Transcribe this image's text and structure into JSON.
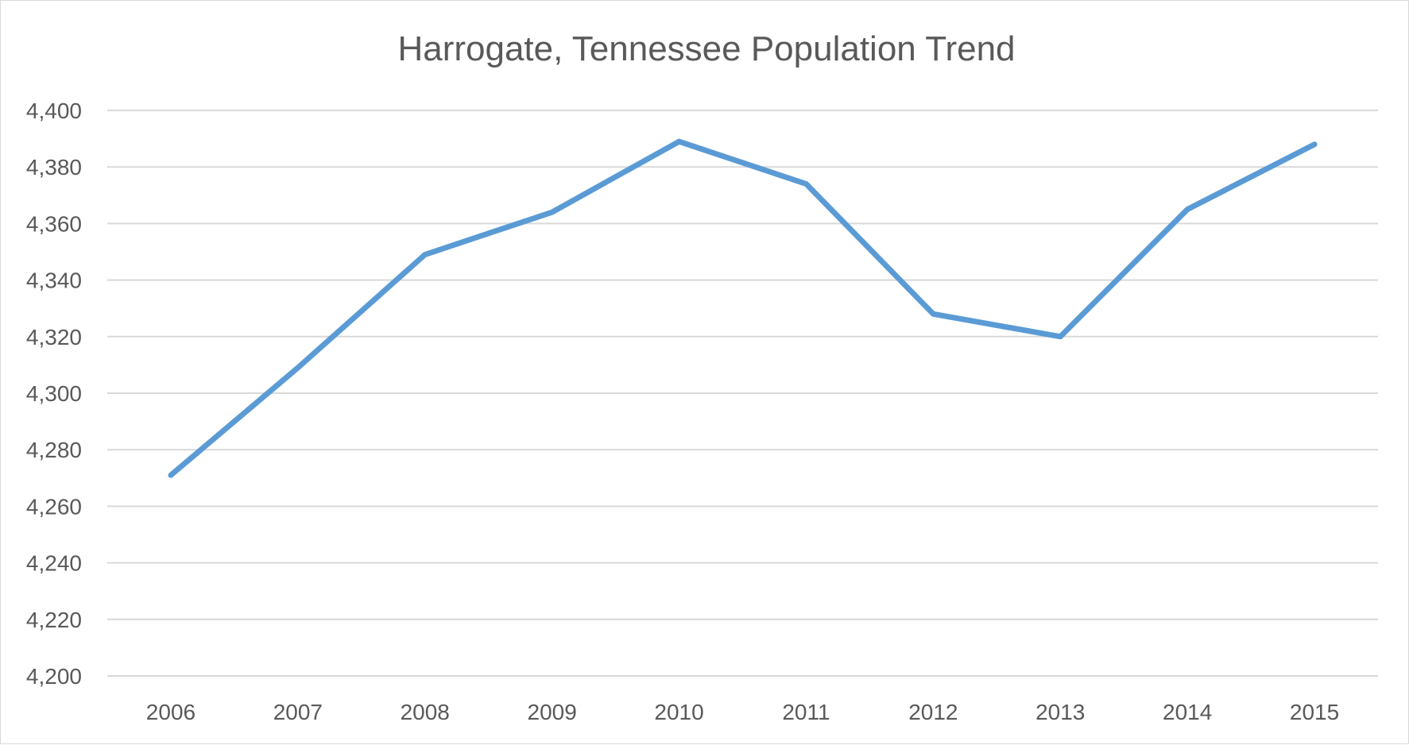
{
  "chart_data": {
    "type": "line",
    "title": "Harrogate, Tennessee Population Trend",
    "xlabel": "",
    "ylabel": "",
    "categories": [
      "2006",
      "2007",
      "2008",
      "2009",
      "2010",
      "2011",
      "2012",
      "2013",
      "2014",
      "2015"
    ],
    "series": [
      {
        "values": [
          4271,
          4309,
          4349,
          4364,
          4389,
          4374,
          4328,
          4320,
          4365,
          4388
        ],
        "color": "#5b9bd5"
      }
    ],
    "ylim": [
      4200,
      4400
    ],
    "yticks": [
      4200,
      4220,
      4240,
      4260,
      4280,
      4300,
      4320,
      4340,
      4360,
      4380,
      4400
    ],
    "ytick_labels": [
      "4,200",
      "4,220",
      "4,240",
      "4,260",
      "4,280",
      "4,300",
      "4,320",
      "4,340",
      "4,360",
      "4,380",
      "4,400"
    ],
    "grid": true,
    "legend": "none"
  }
}
